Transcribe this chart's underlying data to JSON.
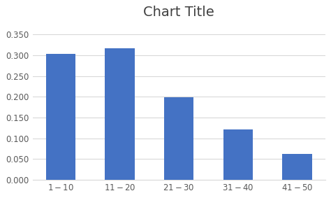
{
  "title": "Chart Title",
  "categories": [
    "$1 - $10",
    "$11 - $20",
    "$21 - $30",
    "$31 - $40",
    "$41 - $50"
  ],
  "values": [
    0.303,
    0.316,
    0.198,
    0.121,
    0.062
  ],
  "bar_color": "#4472C4",
  "ylim": [
    0,
    0.375
  ],
  "yticks": [
    0.0,
    0.05,
    0.1,
    0.15,
    0.2,
    0.25,
    0.3,
    0.35
  ],
  "ytick_labels": [
    "0.000",
    "0.050",
    "0.100",
    "0.150",
    "0.200",
    "0.250",
    "0.300",
    "0.350"
  ],
  "background_color": "#ffffff",
  "plot_bg_color": "#ffffff",
  "title_fontsize": 14,
  "tick_fontsize": 8.5,
  "grid_color": "#d9d9d9",
  "bar_width": 0.5,
  "title_color": "#404040",
  "tick_color": "#595959"
}
